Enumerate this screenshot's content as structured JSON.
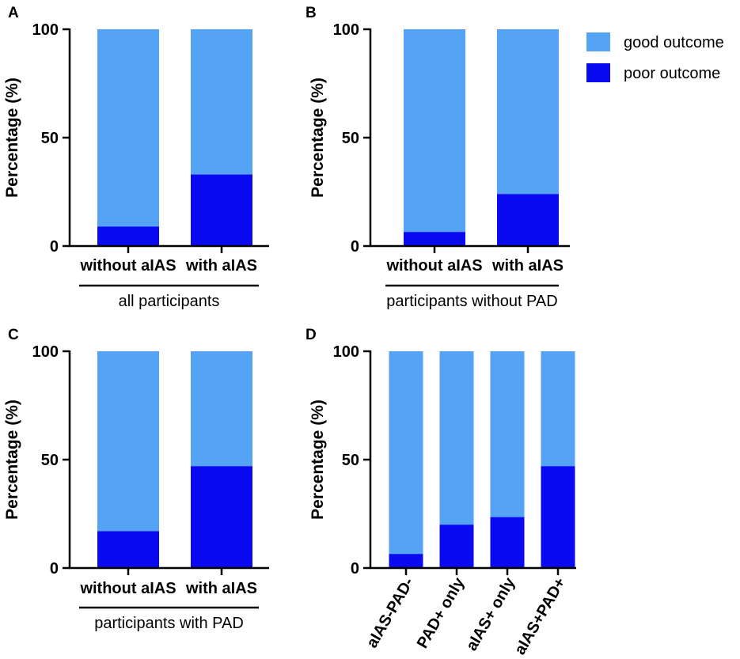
{
  "colors": {
    "good": "#55A3F5",
    "poor": "#0A0AF0",
    "axis": "#000000"
  },
  "legend": {
    "items": [
      {
        "label": "good outcome",
        "color": "#55A3F5"
      },
      {
        "label": "poor outcome",
        "color": "#0A0AF0"
      }
    ],
    "placement": "top-right"
  },
  "chart_data": [
    {
      "panel": "A",
      "type": "bar",
      "stacked": true,
      "categories": [
        "without aIAS",
        "with aIAS"
      ],
      "group_label": "all participants",
      "series": [
        {
          "name": "poor outcome",
          "values": [
            9,
            33
          ]
        },
        {
          "name": "good outcome",
          "values": [
            91,
            67
          ]
        }
      ],
      "ylabel": "Percentage (%)",
      "ylim": [
        0,
        100
      ],
      "yticks": [
        0,
        50,
        100
      ]
    },
    {
      "panel": "B",
      "type": "bar",
      "stacked": true,
      "categories": [
        "without aIAS",
        "with aIAS"
      ],
      "group_label": "participants without PAD",
      "series": [
        {
          "name": "poor outcome",
          "values": [
            6.5,
            24
          ]
        },
        {
          "name": "good outcome",
          "values": [
            93.5,
            76
          ]
        }
      ],
      "ylabel": "Percentage (%)",
      "ylim": [
        0,
        100
      ],
      "yticks": [
        0,
        50,
        100
      ]
    },
    {
      "panel": "C",
      "type": "bar",
      "stacked": true,
      "categories": [
        "without aIAS",
        "with aIAS"
      ],
      "group_label": "participants with PAD",
      "series": [
        {
          "name": "poor outcome",
          "values": [
            17,
            47
          ]
        },
        {
          "name": "good outcome",
          "values": [
            83,
            53
          ]
        }
      ],
      "ylabel": "Percentage (%)",
      "ylim": [
        0,
        100
      ],
      "yticks": [
        0,
        50,
        100
      ]
    },
    {
      "panel": "D",
      "type": "bar",
      "stacked": true,
      "categories": [
        "aIAS-PAD-",
        "PAD+ only",
        "aIAS+ only",
        "aIAS+PAD+"
      ],
      "group_label": "",
      "series": [
        {
          "name": "poor outcome",
          "values": [
            6.5,
            20,
            23.5,
            47
          ]
        },
        {
          "name": "good outcome",
          "values": [
            93.5,
            80,
            76.5,
            53
          ]
        }
      ],
      "ylabel": "Percentage (%)",
      "ylim": [
        0,
        100
      ],
      "yticks": [
        0,
        50,
        100
      ]
    }
  ]
}
